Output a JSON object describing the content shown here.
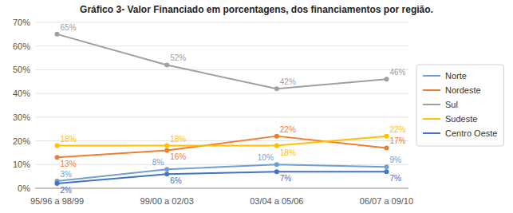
{
  "chart_data": {
    "type": "line",
    "title": "Gráfico 3- Valor Financiado em porcentagens, dos financiamentos por região.",
    "categories": [
      "95/96 a 98/99",
      "99/00 a 02/03",
      "03/04 a 05/06",
      "06/07 a 09/10"
    ],
    "series": [
      {
        "name": "Norte",
        "color": "#70A0D0",
        "values": [
          3,
          8,
          10,
          9
        ],
        "value_labels": [
          "3%",
          "8%",
          "10%",
          "9%"
        ]
      },
      {
        "name": "Nordeste",
        "color": "#ED7D31",
        "values": [
          13,
          16,
          22,
          17
        ],
        "value_labels": [
          "13%",
          "16%",
          "22%",
          "17%"
        ]
      },
      {
        "name": "Sul",
        "color": "#A0A0A0",
        "values": [
          65,
          52,
          42,
          46
        ],
        "value_labels": [
          "65%",
          "52%",
          "42%",
          "46%"
        ]
      },
      {
        "name": "Sudeste",
        "color": "#FFC000",
        "values": [
          18,
          18,
          18,
          22
        ],
        "value_labels": [
          "18%",
          "18%",
          "18%",
          "22%"
        ]
      },
      {
        "name": "Centro Oeste",
        "color": "#4472C4",
        "values": [
          2,
          6,
          7,
          7
        ],
        "value_labels": [
          "2%",
          "6%",
          "7%",
          "7%"
        ]
      }
    ],
    "ylim": [
      0,
      70
    ],
    "yticks": [
      {
        "value": 0,
        "label": "0%"
      },
      {
        "value": 10,
        "label": "10%"
      },
      {
        "value": 20,
        "label": "20%"
      },
      {
        "value": 30,
        "label": "30%"
      },
      {
        "value": 40,
        "label": "40%"
      },
      {
        "value": 50,
        "label": "50%"
      },
      {
        "value": 60,
        "label": "60%"
      },
      {
        "value": 70,
        "label": "70%"
      }
    ],
    "grid": true,
    "legend": "right",
    "data_labels": true,
    "marker": "circle",
    "line_style": "solid"
  }
}
